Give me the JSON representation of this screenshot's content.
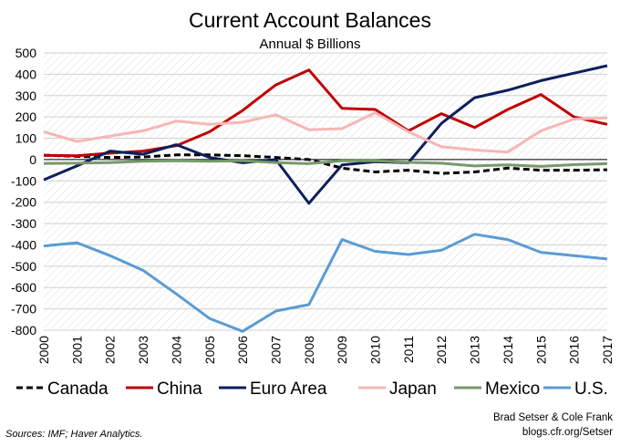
{
  "chart_data": {
    "type": "line",
    "title": "Current Account Balances",
    "subtitle": "Annual $ Billions",
    "xlabel": "",
    "ylabel": "",
    "ylim": [
      -800,
      500
    ],
    "yticks": [
      500,
      400,
      300,
      200,
      100,
      0,
      -100,
      -200,
      -300,
      -400,
      -500,
      -600,
      -700,
      -800
    ],
    "categories": [
      "2000",
      "2001",
      "2002",
      "2003",
      "2004",
      "2005",
      "2006",
      "2007",
      "2008",
      "2009",
      "2010",
      "2011",
      "2012",
      "2013",
      "2014",
      "2015",
      "2016",
      "2017"
    ],
    "legend_position": "bottom",
    "series": [
      {
        "name": "Canada",
        "color": "#000000",
        "dashed": true,
        "values": [
          20,
          15,
          10,
          12,
          22,
          22,
          18,
          10,
          0,
          -40,
          -58,
          -50,
          -65,
          -58,
          -40,
          -50,
          -50,
          -48
        ]
      },
      {
        "name": "China",
        "color": "#c00000",
        "dashed": false,
        "values": [
          20,
          18,
          30,
          40,
          65,
          130,
          230,
          350,
          420,
          240,
          235,
          135,
          215,
          150,
          235,
          305,
          200,
          165
        ]
      },
      {
        "name": "Euro Area",
        "color": "#0d1f5c",
        "dashed": false,
        "values": [
          -95,
          -30,
          40,
          25,
          70,
          10,
          -15,
          0,
          -205,
          -25,
          -10,
          -15,
          170,
          290,
          325,
          370,
          405,
          440
        ]
      },
      {
        "name": "Japan",
        "color": "#f7b6b6",
        "dashed": false,
        "values": [
          130,
          85,
          110,
          135,
          180,
          165,
          175,
          210,
          140,
          145,
          220,
          130,
          60,
          45,
          35,
          135,
          190,
          195
        ]
      },
      {
        "name": "Mexico",
        "color": "#77996b",
        "dashed": false,
        "values": [
          -18,
          -17,
          -14,
          -8,
          -6,
          -8,
          -5,
          -14,
          -19,
          -6,
          -5,
          -13,
          -17,
          -30,
          -25,
          -32,
          -24,
          -19
        ]
      },
      {
        "name": "U.S.",
        "color": "#5b9bd5",
        "dashed": false,
        "values": [
          -405,
          -390,
          -450,
          -520,
          -630,
          -745,
          -805,
          -710,
          -680,
          -375,
          -430,
          -445,
          -425,
          -350,
          -375,
          -435,
          -450,
          -466
        ]
      }
    ]
  },
  "footer": {
    "sources": "Sources: IMF; Haver Analytics.",
    "credit_line1": "Brad Setser & Cole Frank",
    "credit_line2": "blogs.cfr.org/Setser"
  }
}
